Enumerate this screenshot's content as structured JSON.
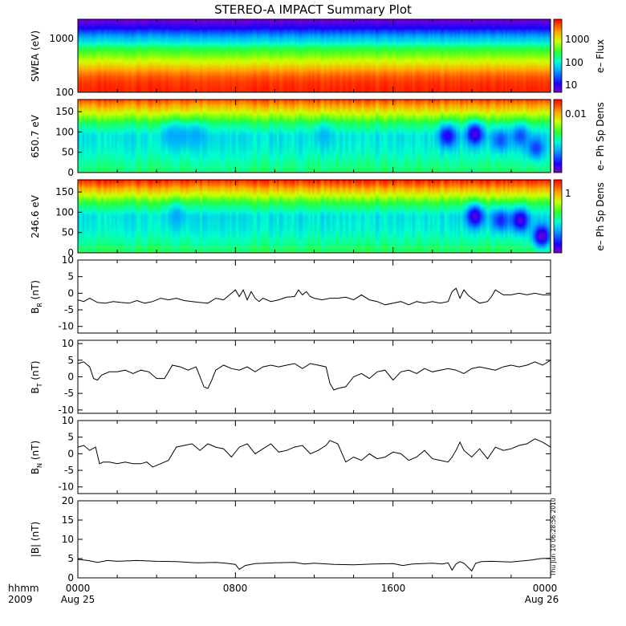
{
  "chart_data": [
    {
      "id": "swea",
      "type": "heatmap",
      "title": "STEREO-A IMPACT Summary Plot",
      "ylabel": "SWEA (eV)",
      "yscale": "log",
      "ylim": [
        100,
        2000
      ],
      "yticks": [
        "100",
        "1000"
      ],
      "colorbar": {
        "label": "e– Flux",
        "scale": "log",
        "ticks": [
          "10",
          "100",
          "1000"
        ]
      },
      "bands": [
        {
          "energy_eV": 1800,
          "level": 0.03
        },
        {
          "energy_eV": 1400,
          "level": 0.12
        },
        {
          "energy_eV": 1100,
          "level": 0.25
        },
        {
          "energy_eV": 800,
          "level": 0.38
        },
        {
          "energy_eV": 600,
          "level": 0.52
        },
        {
          "energy_eV": 450,
          "level": 0.62
        },
        {
          "energy_eV": 330,
          "level": 0.72
        },
        {
          "energy_eV": 250,
          "level": 0.82
        },
        {
          "energy_eV": 190,
          "level": 0.9
        },
        {
          "energy_eV": 150,
          "level": 0.94
        },
        {
          "energy_eV": 115,
          "level": 0.96
        }
      ]
    },
    {
      "id": "pad650",
      "type": "heatmap",
      "ylabel": "650.7 eV",
      "ylim": [
        0,
        180
      ],
      "yticks": [
        "0",
        "50",
        "100",
        "150"
      ],
      "colorbar": {
        "label": "e– Ph Sp Dens",
        "ticks": [
          "0.01"
        ]
      },
      "base_profile": [
        {
          "pa_deg": 180,
          "level": 0.92
        },
        {
          "pa_deg": 150,
          "level": 0.72
        },
        {
          "pa_deg": 120,
          "level": 0.5
        },
        {
          "pa_deg": 90,
          "level": 0.38
        },
        {
          "pa_deg": 60,
          "level": 0.4
        },
        {
          "pa_deg": 30,
          "level": 0.45
        },
        {
          "pa_deg": 0,
          "level": 0.5
        }
      ],
      "depletions": [
        {
          "hour": 4.7,
          "pa_deg": 90,
          "level": 0.3
        },
        {
          "hour": 5.3,
          "pa_deg": 90,
          "level": 0.3
        },
        {
          "hour": 6.0,
          "pa_deg": 90,
          "level": 0.3
        },
        {
          "hour": 12.5,
          "pa_deg": 90,
          "level": 0.32
        },
        {
          "hour": 18.8,
          "pa_deg": 90,
          "level": 0.1
        },
        {
          "hour": 20.2,
          "pa_deg": 95,
          "level": 0.05
        },
        {
          "hour": 21.5,
          "pa_deg": 80,
          "level": 0.2
        },
        {
          "hour": 22.5,
          "pa_deg": 90,
          "level": 0.2
        },
        {
          "hour": 23.3,
          "pa_deg": 60,
          "level": 0.18
        }
      ]
    },
    {
      "id": "pad246",
      "type": "heatmap",
      "ylabel": "246.6 eV",
      "ylim": [
        0,
        180
      ],
      "yticks": [
        "0",
        "50",
        "100",
        "150"
      ],
      "colorbar": {
        "label": "e– Ph Sp Dens",
        "ticks": [
          "1"
        ]
      },
      "base_profile": [
        {
          "pa_deg": 180,
          "level": 0.97
        },
        {
          "pa_deg": 150,
          "level": 0.75
        },
        {
          "pa_deg": 120,
          "level": 0.52
        },
        {
          "pa_deg": 90,
          "level": 0.38
        },
        {
          "pa_deg": 60,
          "level": 0.4
        },
        {
          "pa_deg": 30,
          "level": 0.45
        },
        {
          "pa_deg": 0,
          "level": 0.52
        }
      ],
      "depletions": [
        {
          "hour": 5.0,
          "pa_deg": 90,
          "level": 0.3
        },
        {
          "hour": 20.2,
          "pa_deg": 90,
          "level": 0.05
        },
        {
          "hour": 21.5,
          "pa_deg": 80,
          "level": 0.15
        },
        {
          "hour": 22.5,
          "pa_deg": 80,
          "level": 0.05
        },
        {
          "hour": 23.6,
          "pa_deg": 40,
          "level": 0.02
        }
      ]
    },
    {
      "id": "br",
      "type": "line",
      "ylabel_main": "B",
      "ylabel_sub": "R",
      "ylabel_unit": " (nT)",
      "ylim": [
        -12,
        10
      ],
      "yticks": [
        "-10",
        "-5",
        "0",
        "5",
        "10"
      ],
      "x": [
        0,
        0.3,
        0.6,
        1,
        1.4,
        1.8,
        2.2,
        2.6,
        3,
        3.4,
        3.8,
        4.2,
        4.6,
        5,
        5.4,
        5.8,
        6.2,
        6.6,
        7,
        7.4,
        7.8,
        8,
        8.2,
        8.4,
        8.6,
        8.8,
        9,
        9.2,
        9.4,
        9.8,
        10.2,
        10.6,
        11,
        11.2,
        11.4,
        11.6,
        11.8,
        12,
        12.4,
        12.8,
        13.2,
        13.6,
        14,
        14.4,
        14.8,
        15.2,
        15.6,
        16,
        16.4,
        16.8,
        17.2,
        17.6,
        18,
        18.4,
        18.8,
        19,
        19.2,
        19.4,
        19.6,
        19.8,
        20,
        20.4,
        20.8,
        21,
        21.2,
        21.6,
        22,
        22.4,
        22.8,
        23.2,
        23.6,
        24
      ],
      "y": [
        -2,
        -2.5,
        -1.5,
        -2.8,
        -3,
        -2.5,
        -2.8,
        -3,
        -2.2,
        -3,
        -2.5,
        -1.5,
        -2,
        -1.5,
        -2.2,
        -2.5,
        -2.8,
        -3,
        -1.5,
        -2,
        0,
        1,
        -1,
        1,
        -2,
        0.5,
        -1.5,
        -2.5,
        -1.5,
        -2.5,
        -2,
        -1.2,
        -1,
        1,
        -0.5,
        0.5,
        -1,
        -1.5,
        -2,
        -1.5,
        -1.5,
        -1.2,
        -2,
        -0.5,
        -2,
        -2.5,
        -3.5,
        -3,
        -2.5,
        -3.5,
        -2.5,
        -3,
        -2.5,
        -3,
        -2.5,
        0.5,
        1.5,
        -1.5,
        1,
        -0.5,
        -1.5,
        -3,
        -2.5,
        -1,
        1,
        -0.5,
        -0.5,
        0,
        -0.5,
        0,
        -0.5,
        -0.5
      ]
    },
    {
      "id": "bt",
      "type": "line",
      "ylabel_main": "B",
      "ylabel_sub": "T",
      "ylabel_unit": " (nT)",
      "ylim": [
        -11,
        11
      ],
      "yticks": [
        "-10",
        "-5",
        "0",
        "5",
        "10"
      ],
      "x": [
        0,
        0.3,
        0.6,
        0.8,
        1,
        1.2,
        1.6,
        2,
        2.4,
        2.8,
        3.2,
        3.6,
        4,
        4.4,
        4.8,
        5.2,
        5.6,
        6,
        6.2,
        6.4,
        6.6,
        6.8,
        7,
        7.4,
        7.8,
        8.2,
        8.6,
        9,
        9.4,
        9.8,
        10.2,
        10.6,
        11,
        11.4,
        11.8,
        12.2,
        12.6,
        12.8,
        13,
        13.2,
        13.6,
        14,
        14.4,
        14.8,
        15.2,
        15.6,
        16,
        16.4,
        16.8,
        17.2,
        17.6,
        18,
        18.4,
        18.8,
        19.2,
        19.6,
        20,
        20.4,
        20.8,
        21.2,
        21.6,
        22,
        22.4,
        22.8,
        23.2,
        23.6,
        24
      ],
      "y": [
        4,
        4.5,
        3,
        -0.5,
        -1,
        0.5,
        1.5,
        1.5,
        2,
        1,
        2,
        1.5,
        -0.5,
        -0.5,
        3.5,
        3,
        2,
        3,
        0,
        -3,
        -3.5,
        -1,
        2,
        3.5,
        2.5,
        2,
        3,
        1.5,
        3,
        3.5,
        3,
        3.5,
        4,
        2.5,
        4,
        3.5,
        3,
        -2,
        -4,
        -3.5,
        -3,
        0,
        1,
        -0.5,
        1.5,
        2,
        -1,
        1.5,
        2,
        1,
        2.5,
        1.5,
        2,
        2.5,
        2,
        1,
        2.5,
        3,
        2.5,
        2,
        3,
        3.5,
        3,
        3.5,
        4.5,
        3.5,
        5
      ]
    },
    {
      "id": "bn",
      "type": "line",
      "ylabel_main": "B",
      "ylabel_sub": "N",
      "ylabel_unit": " (nT)",
      "ylim": [
        -12,
        10
      ],
      "yticks": [
        "-10",
        "-5",
        "0",
        "5",
        "10"
      ],
      "x": [
        0,
        0.3,
        0.6,
        0.9,
        1.1,
        1.3,
        1.6,
        2,
        2.4,
        2.8,
        3.2,
        3.5,
        3.8,
        4.2,
        4.6,
        5,
        5.4,
        5.8,
        6.2,
        6.6,
        7,
        7.4,
        7.8,
        8.2,
        8.6,
        9,
        9.4,
        9.8,
        10.2,
        10.6,
        11,
        11.4,
        11.8,
        12.2,
        12.6,
        12.8,
        13,
        13.2,
        13.6,
        14,
        14.4,
        14.8,
        15.2,
        15.6,
        16,
        16.4,
        16.8,
        17.2,
        17.6,
        18,
        18.4,
        18.8,
        19,
        19.2,
        19.4,
        19.6,
        20,
        20.4,
        20.8,
        21.2,
        21.6,
        22,
        22.4,
        22.8,
        23.2,
        23.6,
        24
      ],
      "y": [
        2,
        2.5,
        1,
        2,
        -3,
        -2.5,
        -2.5,
        -3,
        -2.5,
        -3,
        -3,
        -2.5,
        -4,
        -3,
        -2,
        2,
        2.5,
        3,
        1,
        3,
        2,
        1.5,
        -1,
        2,
        3,
        0,
        1.5,
        3,
        0.5,
        1,
        2,
        2.5,
        0,
        1,
        2.5,
        4,
        3.5,
        3,
        -2.5,
        -1,
        -2,
        0,
        -1.5,
        -1,
        0.5,
        0,
        -2,
        -1,
        1,
        -1.5,
        -2,
        -2.5,
        -1,
        1,
        3.5,
        1,
        -1,
        1.5,
        -1.5,
        2,
        1,
        1.5,
        2.5,
        3,
        4.5,
        3.5,
        2
      ]
    },
    {
      "id": "bmag",
      "type": "line",
      "ylabel": "|B| (nT)",
      "ylim": [
        0,
        20
      ],
      "yticks": [
        "0",
        "5",
        "10",
        "15",
        "20"
      ],
      "x": [
        0,
        0.5,
        1,
        1.5,
        2,
        3,
        4,
        5,
        6,
        7,
        7.5,
        8,
        8.2,
        8.5,
        9,
        10,
        11,
        11.5,
        12,
        13,
        14,
        15,
        16,
        16.5,
        17,
        18,
        18.5,
        18.8,
        19,
        19.2,
        19.4,
        19.6,
        20,
        20.2,
        20.5,
        21,
        22,
        23,
        23.5,
        24
      ],
      "y": [
        4.8,
        4.5,
        4,
        4.5,
        4.3,
        4.5,
        4.3,
        4.2,
        3.9,
        4,
        3.8,
        3.5,
        2.2,
        3.2,
        3.7,
        3.9,
        4,
        3.6,
        3.8,
        3.5,
        3.4,
        3.6,
        3.7,
        3.2,
        3.6,
        3.8,
        3.6,
        3.9,
        2,
        3.6,
        4.2,
        3.8,
        1.8,
        3.8,
        4.2,
        4.3,
        4.1,
        4.6,
        5,
        5.1
      ]
    }
  ],
  "x_axis": {
    "tick_hours": [
      0,
      8,
      16,
      24
    ],
    "tick_labels": [
      "0000",
      "0800",
      "1600",
      "0000"
    ],
    "date_labels": [
      "Aug 25",
      "",
      "",
      "Aug 26"
    ],
    "corner_top": "hhmm",
    "corner_bottom": "2009"
  },
  "timestamp": "Thu Jun 10 06:28:56 2010"
}
